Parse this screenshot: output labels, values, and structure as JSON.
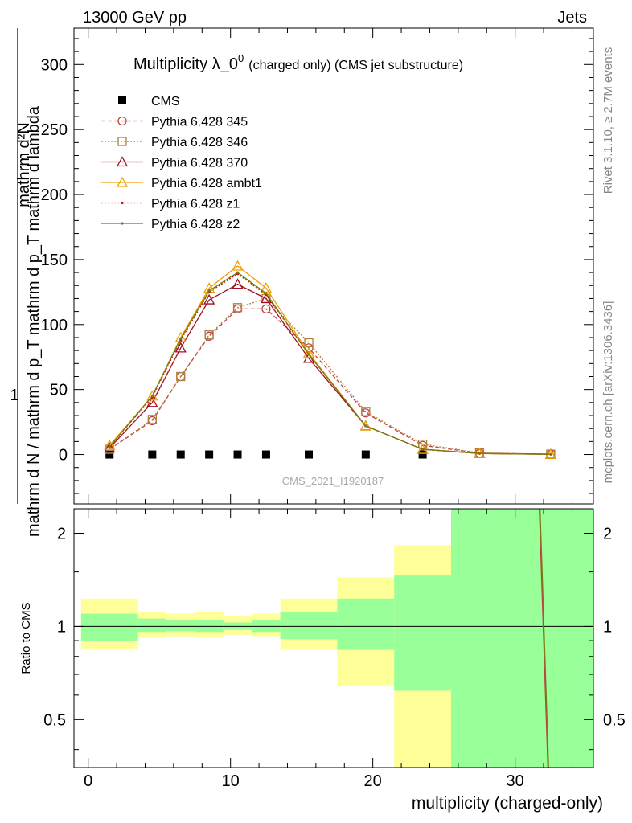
{
  "header": {
    "left": "13000 GeV pp",
    "right": "Jets"
  },
  "side_labels": {
    "rivet": "Rivet 3.1.10, ≥ 2.7M events",
    "mcplots": "mcplots.cern.ch [arXiv:1306.3436]"
  },
  "colors": {
    "cms": "#000000",
    "p345": "#c04040",
    "p346": "#b08040",
    "p370": "#a01020",
    "ambt1": "#f0a000",
    "z1": "#c01010",
    "z2": "#7a7a10",
    "band_inner": "#99ff99",
    "band_outer": "#ffff99"
  },
  "chart_data": [
    {
      "type": "line",
      "title": "Multiplicity λ_0",
      "title_sup": "0",
      "title_suffix": "(charged only) (CMS jet substructure)",
      "ylabel_numerator": "1",
      "ylabel_denominator": "mathrm d N / mathrm d p_T mathrm d p_T mathrm d lambda",
      "ylabel_top_frac": "mathrm d²N",
      "watermark": "CMS_2021_I1920187",
      "xlim": [
        -1,
        35.5
      ],
      "ylim": [
        -38,
        328
      ],
      "yticks": [
        0,
        50,
        100,
        150,
        200,
        250,
        300
      ],
      "grid": false,
      "legend_position": "top-left",
      "x": [
        1.5,
        4.5,
        6.5,
        8.5,
        10.5,
        12.5,
        15.5,
        19.5,
        23.5,
        27.5,
        32.5
      ],
      "series": [
        {
          "name": "CMS",
          "key": "cms",
          "style": "cms",
          "values": [
            0,
            0,
            0,
            0,
            0,
            0,
            0,
            0,
            0,
            null,
            null
          ]
        },
        {
          "name": "Pythia 6.428 345",
          "key": "p345",
          "style": "circle-dashed",
          "values": [
            4,
            26,
            60,
            91,
            112,
            112,
            82,
            32,
            7,
            1,
            0.3
          ]
        },
        {
          "name": "Pythia 6.428 346",
          "key": "p346",
          "style": "square-dotted",
          "values": [
            4,
            27,
            60,
            92,
            113,
            120,
            86,
            33,
            8,
            1.2,
            0.3
          ]
        },
        {
          "name": "Pythia 6.428 370",
          "key": "p370",
          "style": "triangle-solid",
          "values": [
            5,
            40,
            82,
            119,
            131,
            120,
            74,
            22,
            4,
            0.8,
            0.2
          ]
        },
        {
          "name": "Pythia 6.428 ambt1",
          "key": "ambt1",
          "style": "triangle-solid-thin",
          "values": [
            7,
            45,
            90,
            128,
            145,
            128,
            78,
            22,
            4,
            0.8,
            0.2
          ]
        },
        {
          "name": "Pythia 6.428 z1",
          "key": "z1",
          "style": "dot-dotted",
          "values": [
            6,
            44,
            88,
            125,
            139,
            123,
            77,
            22,
            4,
            0.8,
            0.2
          ]
        },
        {
          "name": "Pythia 6.428 z2",
          "key": "z2",
          "style": "dot-solid",
          "values": [
            6,
            45,
            89,
            126,
            140,
            124,
            77,
            22,
            4,
            0.8,
            0.2
          ]
        }
      ]
    },
    {
      "type": "line",
      "ylabel": "Ratio to CMS",
      "xlabel": "multiplicity (charged-only)",
      "xlim": [
        -1,
        35.5
      ],
      "ylim": [
        0.35,
        2.4
      ],
      "yscale": "log",
      "yticks": [
        0.5,
        1,
        2
      ],
      "xticks": [
        0,
        10,
        20,
        30
      ],
      "bins": [
        {
          "lo": -0.5,
          "hi": 3.5,
          "inner": [
            0.9,
            1.1
          ],
          "outer": [
            0.84,
            1.23
          ]
        },
        {
          "lo": 3.5,
          "hi": 5.5,
          "inner": [
            0.96,
            1.06
          ],
          "outer": [
            0.92,
            1.11
          ]
        },
        {
          "lo": 5.5,
          "hi": 7.5,
          "inner": [
            0.965,
            1.045
          ],
          "outer": [
            0.93,
            1.1
          ]
        },
        {
          "lo": 7.5,
          "hi": 9.5,
          "inner": [
            0.96,
            1.05
          ],
          "outer": [
            0.92,
            1.11
          ]
        },
        {
          "lo": 9.5,
          "hi": 11.5,
          "inner": [
            0.975,
            1.03
          ],
          "outer": [
            0.94,
            1.08
          ]
        },
        {
          "lo": 11.5,
          "hi": 13.5,
          "inner": [
            0.96,
            1.05
          ],
          "outer": [
            0.93,
            1.1
          ]
        },
        {
          "lo": 13.5,
          "hi": 17.5,
          "inner": [
            0.91,
            1.11
          ],
          "outer": [
            0.84,
            1.23
          ]
        },
        {
          "lo": 17.5,
          "hi": 21.5,
          "inner": [
            0.84,
            1.23
          ],
          "outer": [
            0.64,
            1.44
          ]
        },
        {
          "lo": 21.5,
          "hi": 25.5,
          "inner": [
            0.62,
            1.46
          ],
          "outer": [
            0.35,
            1.83
          ]
        },
        {
          "lo": 25.5,
          "hi": 35.5,
          "inner": [
            0.35,
            2.4
          ],
          "outer": [
            0.35,
            2.4
          ]
        }
      ],
      "ratio_line": {
        "x": [
          31.7,
          32.3
        ],
        "y": [
          2.4,
          0.35
        ]
      }
    }
  ]
}
